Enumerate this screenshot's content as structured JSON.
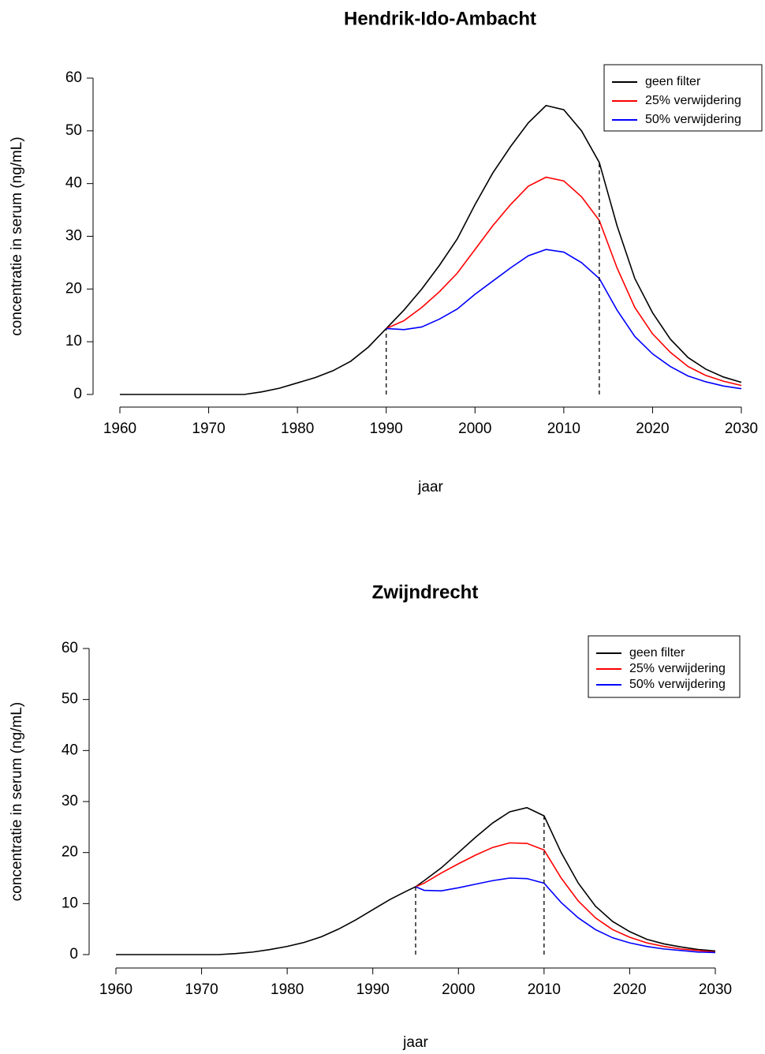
{
  "chart_data": [
    {
      "type": "line",
      "title": "Hendrik-Ido-Ambacht",
      "xlabel": "jaar",
      "ylabel": "concentratie in serum (ng/mL)",
      "x": [
        1960,
        1962,
        1964,
        1966,
        1968,
        1970,
        1972,
        1974,
        1976,
        1978,
        1980,
        1982,
        1984,
        1986,
        1988,
        1990,
        1992,
        1994,
        1996,
        1998,
        2000,
        2002,
        2004,
        2006,
        2008,
        2010,
        2012,
        2014,
        2016,
        2018,
        2020,
        2022,
        2024,
        2026,
        2028,
        2030
      ],
      "series": [
        {
          "name": "geen filter",
          "color": "#000000",
          "values": [
            0,
            0,
            0,
            0,
            0,
            0,
            0,
            0,
            0.5,
            1.2,
            2.2,
            3.2,
            4.5,
            6.3,
            9,
            12.5,
            16,
            20,
            24.5,
            29.5,
            36,
            42,
            47,
            51.5,
            54.8,
            54,
            50,
            44,
            32,
            22,
            15.5,
            10.5,
            7,
            4.8,
            3.3,
            2.3
          ]
        },
        {
          "name": "25% verwijdering",
          "color": "#ff0000",
          "values": [
            null,
            null,
            null,
            null,
            null,
            null,
            null,
            null,
            null,
            null,
            null,
            null,
            null,
            null,
            null,
            12.5,
            14,
            16.5,
            19.5,
            23,
            27.5,
            32,
            36,
            39.5,
            41.2,
            40.5,
            37.5,
            33,
            24,
            16.5,
            11.5,
            8,
            5.3,
            3.6,
            2.5,
            1.7
          ]
        },
        {
          "name": "50% verwijdering",
          "color": "#0000ff",
          "values": [
            null,
            null,
            null,
            null,
            null,
            null,
            null,
            null,
            null,
            null,
            null,
            null,
            null,
            null,
            null,
            12.5,
            12.3,
            12.8,
            14.3,
            16.2,
            19,
            21.5,
            24,
            26.3,
            27.5,
            27,
            25,
            22,
            16,
            11,
            7.7,
            5.3,
            3.5,
            2.4,
            1.6,
            1.1
          ]
        }
      ],
      "vlines": [
        1990,
        2014
      ],
      "xlim": [
        1960,
        2030
      ],
      "xticks": [
        1960,
        1970,
        1980,
        1990,
        2000,
        2010,
        2020,
        2030
      ],
      "ylim": [
        0,
        60
      ],
      "yticks": [
        0,
        10,
        20,
        30,
        40,
        50,
        60
      ],
      "legend": "topright"
    },
    {
      "type": "line",
      "title": "Zwijndrecht",
      "xlabel": "jaar",
      "ylabel": "concentratie in serum (ng/mL)",
      "x": [
        1960,
        1962,
        1964,
        1966,
        1968,
        1970,
        1972,
        1974,
        1976,
        1978,
        1980,
        1982,
        1984,
        1986,
        1988,
        1990,
        1992,
        1994,
        1995,
        1996,
        1998,
        2000,
        2002,
        2004,
        2006,
        2008,
        2010,
        2012,
        2014,
        2016,
        2018,
        2020,
        2022,
        2024,
        2026,
        2028,
        2030
      ],
      "series": [
        {
          "name": "geen filter",
          "color": "#000000",
          "values": [
            0,
            0,
            0,
            0,
            0,
            0,
            0,
            0.2,
            0.5,
            1,
            1.6,
            2.4,
            3.5,
            5,
            6.8,
            8.8,
            10.8,
            12.5,
            13.3,
            14.5,
            17,
            20,
            23,
            25.8,
            28,
            28.8,
            27.2,
            20,
            14,
            9.5,
            6.5,
            4.5,
            3,
            2.1,
            1.5,
            1,
            0.7
          ]
        },
        {
          "name": "25% verwijdering",
          "color": "#ff0000",
          "values": [
            null,
            null,
            null,
            null,
            null,
            null,
            null,
            null,
            null,
            null,
            null,
            null,
            null,
            null,
            null,
            null,
            null,
            null,
            13.3,
            14,
            16,
            17.8,
            19.5,
            21,
            21.9,
            21.8,
            20.5,
            15,
            10.5,
            7.2,
            4.9,
            3.4,
            2.3,
            1.6,
            1.1,
            0.8,
            0.5
          ]
        },
        {
          "name": "50% verwijdering",
          "color": "#0000ff",
          "values": [
            null,
            null,
            null,
            null,
            null,
            null,
            null,
            null,
            null,
            null,
            null,
            null,
            null,
            null,
            null,
            null,
            null,
            null,
            13.3,
            12.6,
            12.5,
            13.1,
            13.8,
            14.5,
            15,
            14.9,
            14,
            10.2,
            7.2,
            4.9,
            3.3,
            2.3,
            1.6,
            1.1,
            0.8,
            0.5,
            0.4
          ]
        }
      ],
      "vlines": [
        1995,
        2010
      ],
      "xlim": [
        1960,
        2030
      ],
      "xticks": [
        1960,
        1970,
        1980,
        1990,
        2000,
        2010,
        2020,
        2030
      ],
      "ylim": [
        0,
        60
      ],
      "yticks": [
        0,
        10,
        20,
        30,
        40,
        50,
        60
      ],
      "legend": "topright"
    }
  ]
}
